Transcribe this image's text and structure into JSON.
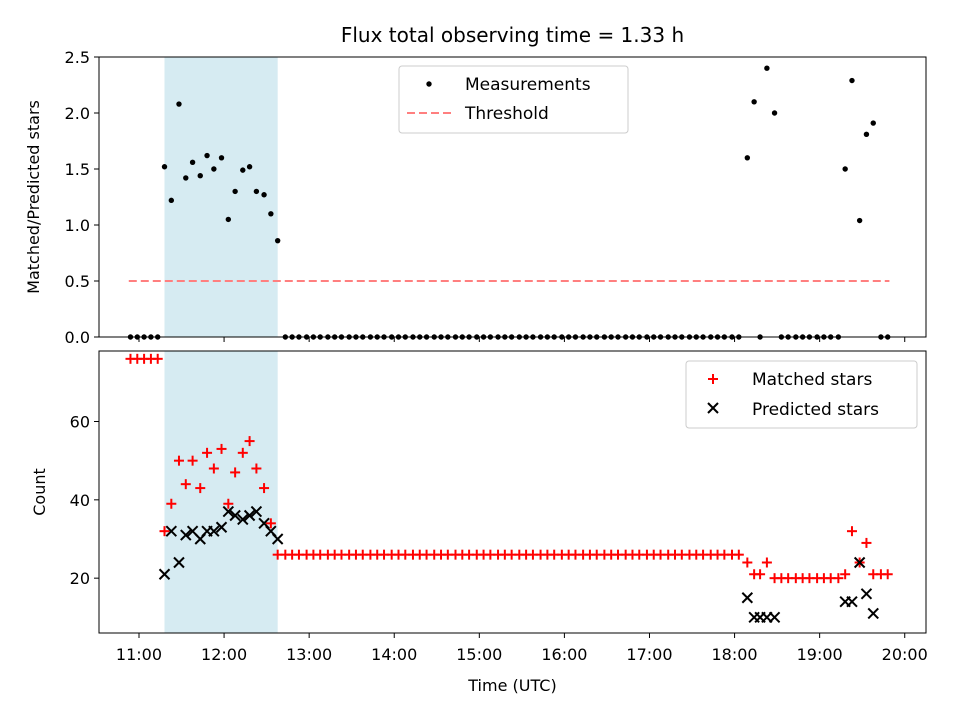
{
  "chart_data": [
    {
      "type": "scatter",
      "title": "Flux total observing time = 1.33 h",
      "xlabel": "",
      "ylabel": "Matched/Predicted stars",
      "xlim": [
        10.53,
        20.25
      ],
      "ylim": [
        0,
        2.5
      ],
      "yticks": [
        0,
        0.5,
        1.0,
        1.5,
        2.0,
        2.5
      ],
      "ytick_labels": [
        "0.0",
        "0.5",
        "1.0",
        "1.5",
        "2.0",
        "2.5"
      ],
      "legend_position": "top-center",
      "grid": false,
      "shaded_span": {
        "x": [
          11.3,
          12.63
        ],
        "color": "#add8e6"
      },
      "series": [
        {
          "name": "Measurements",
          "marker": "dot",
          "color": "#000000",
          "x": [
            10.9,
            10.98,
            11.06,
            11.14,
            11.22,
            11.3,
            11.38,
            11.47,
            11.55,
            11.63,
            11.72,
            11.8,
            11.88,
            11.97,
            12.05,
            12.13,
            12.22,
            12.3,
            12.38,
            12.47,
            12.55,
            12.63,
            12.72,
            12.8,
            12.88,
            12.97,
            13.05,
            13.13,
            13.22,
            13.3,
            13.38,
            13.47,
            13.55,
            13.63,
            13.72,
            13.8,
            13.88,
            13.97,
            14.05,
            14.13,
            14.22,
            14.3,
            14.38,
            14.47,
            14.55,
            14.63,
            14.72,
            14.8,
            14.88,
            14.97,
            15.05,
            15.13,
            15.22,
            15.3,
            15.38,
            15.47,
            15.55,
            15.63,
            15.72,
            15.8,
            15.88,
            15.97,
            16.05,
            16.13,
            16.22,
            16.3,
            16.38,
            16.47,
            16.55,
            16.63,
            16.72,
            16.8,
            16.88,
            16.97,
            17.05,
            17.13,
            17.22,
            17.3,
            17.38,
            17.47,
            17.55,
            17.63,
            17.72,
            17.8,
            17.88,
            17.97,
            18.05,
            18.15,
            18.23,
            18.3,
            18.38,
            18.47,
            18.55,
            18.63,
            18.72,
            18.8,
            18.88,
            18.97,
            19.05,
            19.13,
            19.22,
            19.3,
            19.38,
            19.47,
            19.55,
            19.63,
            19.72,
            19.8
          ],
          "y": [
            0,
            0,
            0,
            0,
            0,
            1.52,
            1.22,
            2.08,
            1.42,
            1.56,
            1.44,
            1.62,
            1.5,
            1.6,
            1.05,
            1.3,
            1.49,
            1.52,
            1.3,
            1.27,
            1.1,
            0.86,
            0,
            0,
            0,
            0,
            0,
            0,
            0,
            0,
            0,
            0,
            0,
            0,
            0,
            0,
            0,
            0,
            0,
            0,
            0,
            0,
            0,
            0,
            0,
            0,
            0,
            0,
            0,
            0,
            0,
            0,
            0,
            0,
            0,
            0,
            0,
            0,
            0,
            0,
            0,
            0,
            0,
            0,
            0,
            0,
            0,
            0,
            0,
            0,
            0,
            0,
            0,
            0,
            0,
            0,
            0,
            0,
            0,
            0,
            0,
            0,
            0,
            0,
            0,
            0,
            0,
            1.6,
            2.1,
            0,
            2.4,
            2.0,
            0,
            0,
            0,
            0,
            0,
            0,
            0,
            0,
            0,
            1.5,
            2.29,
            1.04,
            1.81,
            1.91,
            0,
            0
          ]
        },
        {
          "name": "Threshold",
          "marker": "dashed-line",
          "color": "#ff7f7f",
          "x": [
            10.88,
            19.82
          ],
          "y": [
            0.5,
            0.5
          ]
        }
      ]
    },
    {
      "type": "scatter",
      "title": "",
      "xlabel": "Time (UTC)",
      "ylabel": "Count",
      "xlim": [
        10.53,
        20.25
      ],
      "ylim": [
        6,
        78
      ],
      "yticks": [
        20,
        40,
        60
      ],
      "ytick_labels": [
        "20",
        "40",
        "60"
      ],
      "xticks": [
        11,
        12,
        13,
        14,
        15,
        16,
        17,
        18,
        19,
        20
      ],
      "xtick_labels": [
        "11:00",
        "12:00",
        "13:00",
        "14:00",
        "15:00",
        "16:00",
        "17:00",
        "18:00",
        "19:00",
        "20:00"
      ],
      "legend_position": "top-right",
      "grid": false,
      "shaded_span": {
        "x": [
          11.3,
          12.63
        ],
        "color": "#add8e6"
      },
      "series": [
        {
          "name": "Matched stars",
          "marker": "plus",
          "color": "#ff0000",
          "x": [
            10.9,
            10.98,
            11.06,
            11.14,
            11.22,
            11.3,
            11.38,
            11.47,
            11.55,
            11.63,
            11.72,
            11.8,
            11.88,
            11.97,
            12.05,
            12.13,
            12.22,
            12.3,
            12.38,
            12.47,
            12.55,
            12.63,
            12.72,
            12.8,
            12.88,
            12.97,
            13.05,
            13.13,
            13.22,
            13.3,
            13.38,
            13.47,
            13.55,
            13.63,
            13.72,
            13.8,
            13.88,
            13.97,
            14.05,
            14.13,
            14.22,
            14.3,
            14.38,
            14.47,
            14.55,
            14.63,
            14.72,
            14.8,
            14.88,
            14.97,
            15.05,
            15.13,
            15.22,
            15.3,
            15.38,
            15.47,
            15.55,
            15.63,
            15.72,
            15.8,
            15.88,
            15.97,
            16.05,
            16.13,
            16.22,
            16.3,
            16.38,
            16.47,
            16.55,
            16.63,
            16.72,
            16.8,
            16.88,
            16.97,
            17.05,
            17.13,
            17.22,
            17.3,
            17.38,
            17.47,
            17.55,
            17.63,
            17.72,
            17.8,
            17.88,
            17.97,
            18.05,
            18.15,
            18.23,
            18.3,
            18.38,
            18.47,
            18.55,
            18.63,
            18.72,
            18.8,
            18.88,
            18.97,
            19.05,
            19.13,
            19.22,
            19.3,
            19.38,
            19.47,
            19.55,
            19.63,
            19.72,
            19.8
          ],
          "y": [
            76,
            76,
            76,
            76,
            76,
            32,
            39,
            50,
            44,
            50,
            43,
            52,
            48,
            53,
            39,
            47,
            52,
            55,
            48,
            43,
            34,
            26,
            26,
            26,
            26,
            26,
            26,
            26,
            26,
            26,
            26,
            26,
            26,
            26,
            26,
            26,
            26,
            26,
            26,
            26,
            26,
            26,
            26,
            26,
            26,
            26,
            26,
            26,
            26,
            26,
            26,
            26,
            26,
            26,
            26,
            26,
            26,
            26,
            26,
            26,
            26,
            26,
            26,
            26,
            26,
            26,
            26,
            26,
            26,
            26,
            26,
            26,
            26,
            26,
            26,
            26,
            26,
            26,
            26,
            26,
            26,
            26,
            26,
            26,
            26,
            26,
            26,
            24,
            21,
            21,
            24,
            20,
            20,
            20,
            20,
            20,
            20,
            20,
            20,
            20,
            20,
            21,
            32,
            24,
            29,
            21,
            21,
            21
          ]
        },
        {
          "name": "Predicted stars",
          "marker": "x",
          "color": "#000000",
          "x": [
            11.3,
            11.38,
            11.47,
            11.55,
            11.63,
            11.72,
            11.8,
            11.88,
            11.97,
            12.05,
            12.13,
            12.22,
            12.3,
            12.38,
            12.47,
            12.55,
            12.63,
            18.15,
            18.23,
            18.3,
            18.38,
            18.47,
            19.3,
            19.38,
            19.47,
            19.55,
            19.63
          ],
          "y": [
            21,
            32,
            24,
            31,
            32,
            30,
            32,
            32,
            33,
            37,
            36,
            35,
            36,
            37,
            34,
            32,
            30,
            15,
            10,
            10,
            10,
            10,
            14,
            14,
            24,
            16,
            11
          ]
        }
      ]
    }
  ]
}
